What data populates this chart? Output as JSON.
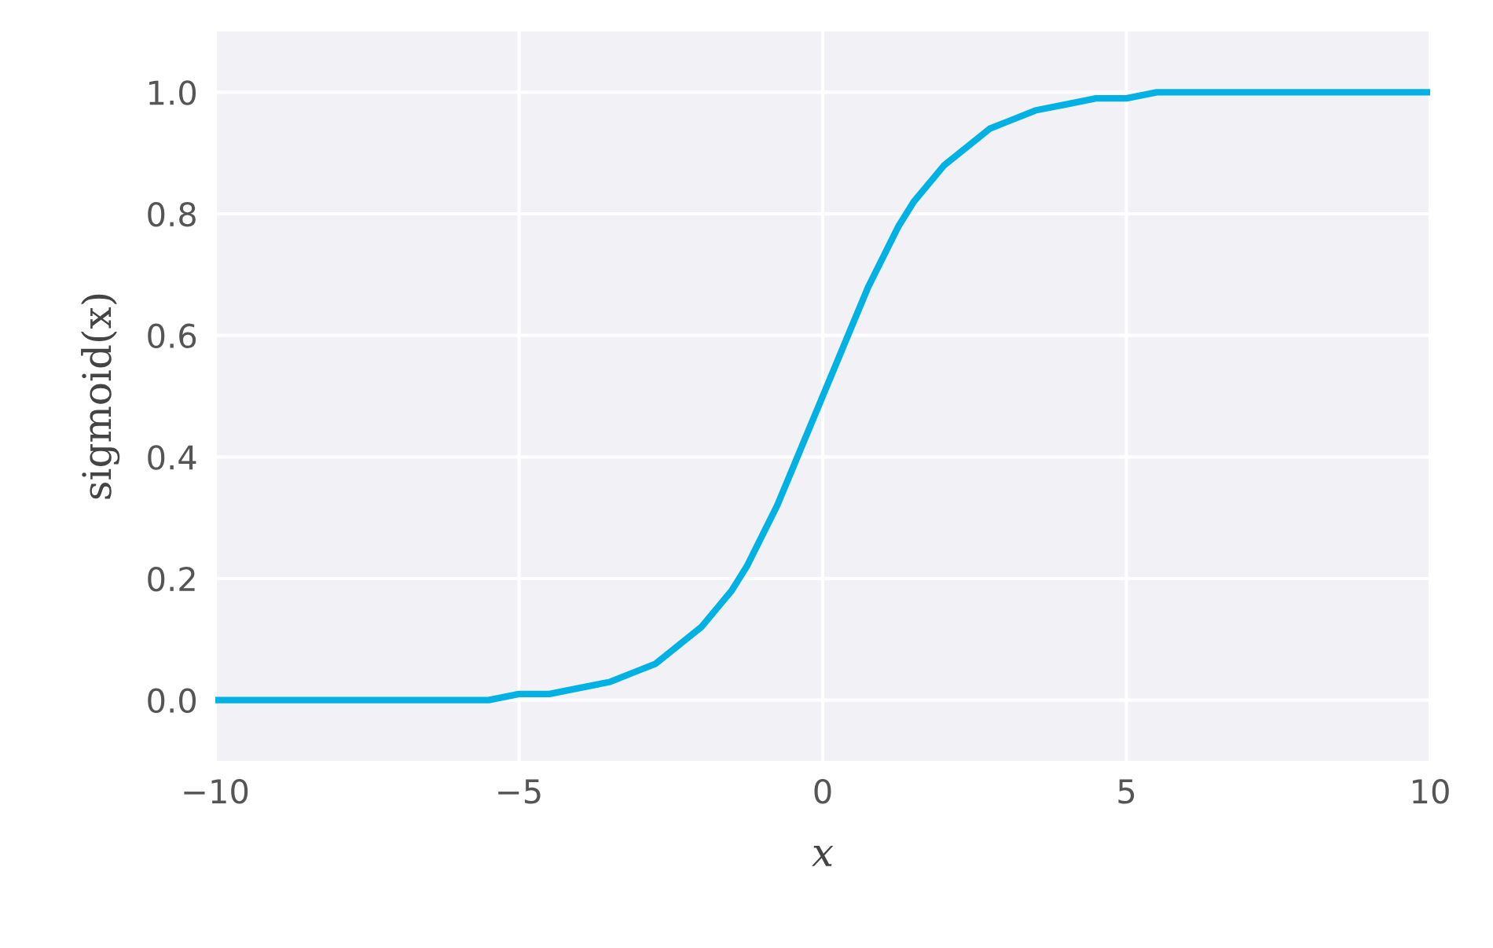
{
  "chart_data": {
    "type": "line",
    "xlabel": "x",
    "ylabel": "sigmoid(x)",
    "x": [
      -10,
      -9.5,
      -9,
      -8.5,
      -8,
      -7.5,
      -7,
      -6.5,
      -6,
      -5.5,
      -5,
      -4.5,
      -4,
      -3.5,
      -3,
      -2.75,
      -2.5,
      -2.25,
      -2,
      -1.75,
      -1.5,
      -1.25,
      -1,
      -0.75,
      -0.5,
      -0.25,
      0,
      0.25,
      0.5,
      0.75,
      1,
      1.25,
      1.5,
      1.75,
      2,
      2.25,
      2.5,
      2.75,
      3,
      3.5,
      4,
      4.5,
      5,
      5.5,
      6,
      6.5,
      7,
      7.5,
      8,
      8.5,
      9,
      9.5,
      10
    ],
    "series": [
      {
        "color": "#00b2e3",
        "values": [
          0.0,
          0.0,
          0.0,
          0.0,
          0.0,
          0.0,
          0.0,
          0.0,
          0.0,
          0.0,
          0.01,
          0.01,
          0.02,
          0.03,
          0.05,
          0.06,
          0.08,
          0.1,
          0.12,
          0.15,
          0.18,
          0.22,
          0.27,
          0.32,
          0.38,
          0.44,
          0.5,
          0.56,
          0.62,
          0.68,
          0.73,
          0.78,
          0.82,
          0.85,
          0.88,
          0.9,
          0.92,
          0.94,
          0.95,
          0.97,
          0.98,
          0.99,
          0.99,
          1.0,
          1.0,
          1.0,
          1.0,
          1.0,
          1.0,
          1.0,
          1.0,
          1.0,
          1.0
        ]
      }
    ],
    "xlim": [
      -10,
      10
    ],
    "xticks": [
      -10,
      -5,
      0,
      5,
      10
    ],
    "ylim": [
      -0.1,
      1.1
    ],
    "yticks": [
      {
        "value": 0,
        "label": "0.0"
      },
      {
        "value": 0.2,
        "label": "0.2"
      },
      {
        "value": 0.4,
        "label": "0.4"
      },
      {
        "value": 0.6,
        "label": "0.6"
      },
      {
        "value": 0.8,
        "label": "0.8"
      },
      {
        "value": 1,
        "label": "1.0"
      }
    ],
    "grid": true,
    "marker": "none",
    "line_style": "solid"
  }
}
